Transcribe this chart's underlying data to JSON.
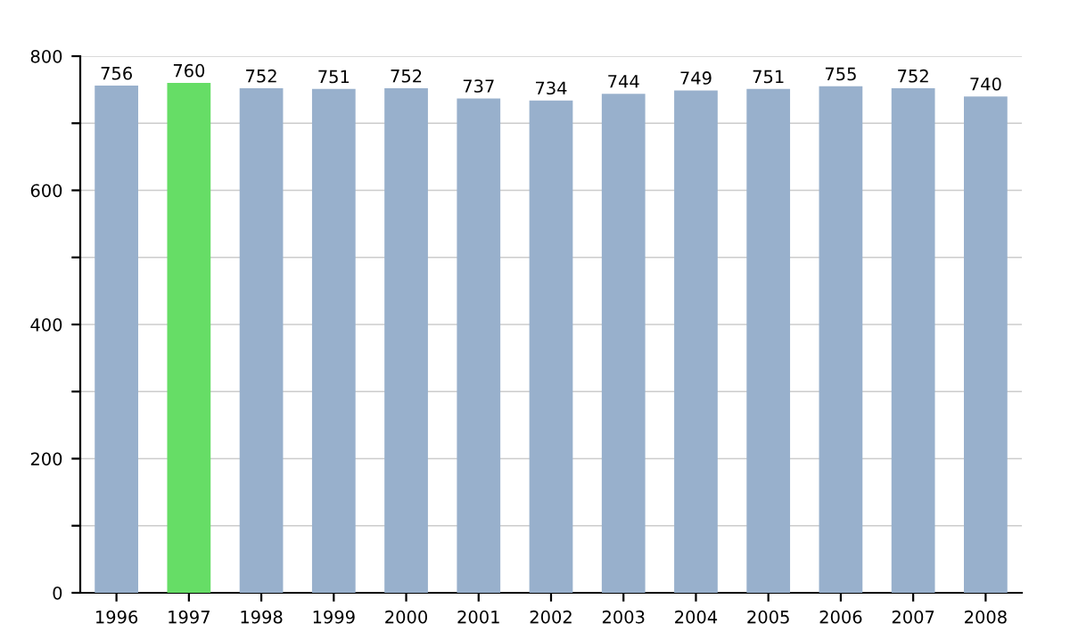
{
  "chart_data": {
    "type": "bar",
    "categories": [
      "1996",
      "1997",
      "1998",
      "1999",
      "2000",
      "2001",
      "2002",
      "2003",
      "2004",
      "2005",
      "2006",
      "2007",
      "2008"
    ],
    "values": [
      756,
      760,
      752,
      751,
      752,
      737,
      734,
      744,
      749,
      751,
      755,
      752,
      740
    ],
    "colors": [
      "#98b0cc",
      "#66dd66",
      "#98b0cc",
      "#98b0cc",
      "#98b0cc",
      "#98b0cc",
      "#98b0cc",
      "#98b0cc",
      "#98b0cc",
      "#98b0cc",
      "#98b0cc",
      "#98b0cc",
      "#98b0cc"
    ],
    "ylim": [
      0,
      800
    ],
    "yticks": [
      0,
      {
        "value": 100,
        "label": null
      },
      200,
      {
        "value": 300,
        "label": null
      },
      400,
      {
        "value": 500,
        "label": null
      },
      600,
      {
        "value": 700,
        "label": null
      },
      800
    ],
    "grid": "y",
    "data_labels": true,
    "legend": false
  }
}
